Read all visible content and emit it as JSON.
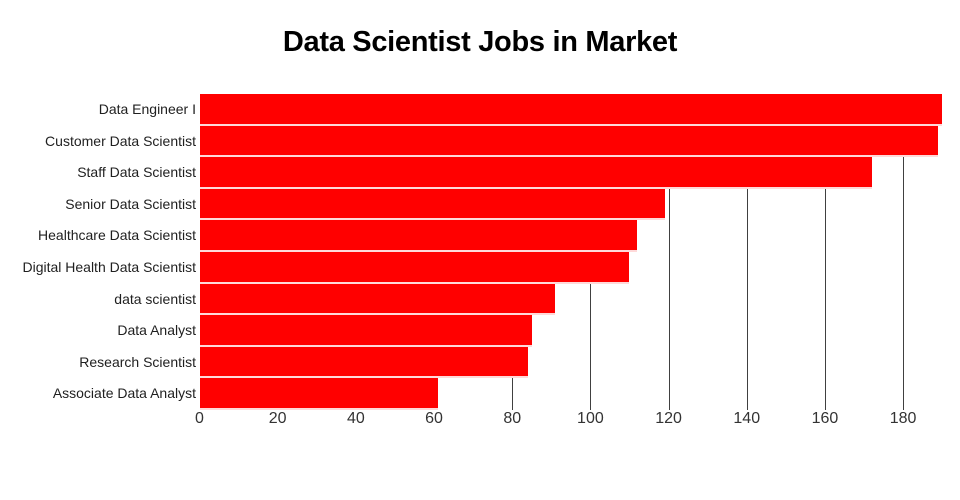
{
  "chart_data": {
    "type": "bar",
    "orientation": "horizontal",
    "title": "Data Scientist Jobs in Market",
    "categories": [
      "Data Engineer I",
      "Customer Data Scientist",
      "Staff Data Scientist",
      "Senior Data Scientist",
      "Healthcare Data Scientist",
      "Digital Health Data Scientist",
      "data scientist",
      "Data Analyst",
      "Research Scientist",
      "Associate Data Analyst"
    ],
    "values": [
      190,
      189,
      172,
      119,
      112,
      110,
      91,
      85,
      84,
      61
    ],
    "x_ticks": [
      0,
      20,
      40,
      60,
      80,
      100,
      120,
      140,
      160,
      180
    ],
    "xlim": [
      0,
      195
    ],
    "xlabel": "",
    "ylabel": "",
    "grid": "vertical-gridlines-behind-bars",
    "legend": "none",
    "colors": {
      "bar": "#ff0000",
      "gridline": "#404040",
      "title": "#000000",
      "category_label": "#1f1f1f",
      "tick_label": "#333333",
      "background": "#ffffff"
    }
  }
}
